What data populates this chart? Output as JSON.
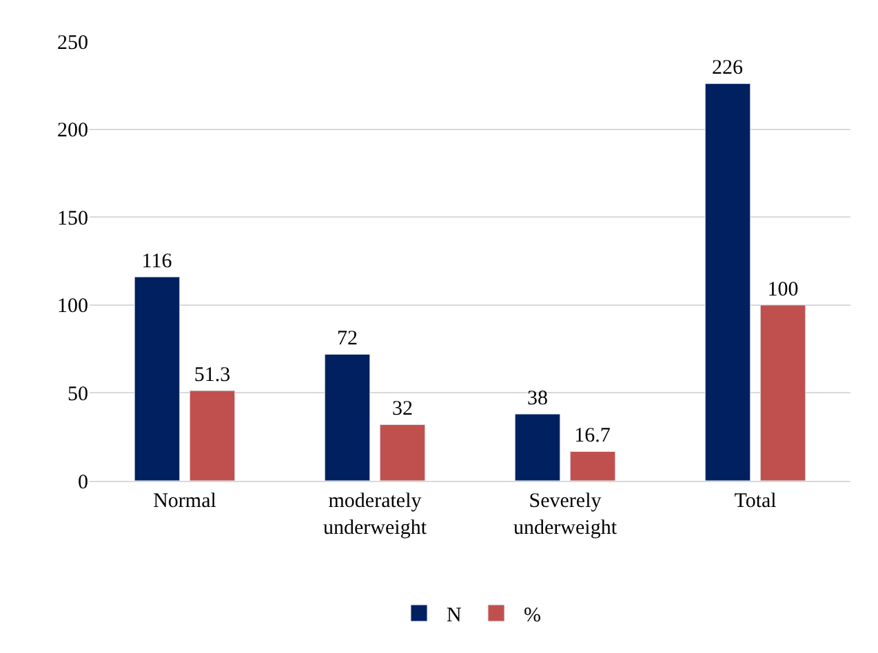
{
  "chart_data": {
    "type": "bar",
    "categories": [
      "Normal",
      "moderately underweight",
      "Severely underweight",
      "Total"
    ],
    "series": [
      {
        "name": "N",
        "color": "#002060",
        "values": [
          116,
          72,
          38,
          226
        ]
      },
      {
        "name": "%",
        "color": "#c0504d",
        "values": [
          51.3,
          32,
          16.7,
          100
        ]
      }
    ],
    "ylim": [
      0,
      250
    ],
    "yticks": [
      0,
      50,
      100,
      150,
      200,
      250
    ],
    "grid": "y",
    "legend": "bottom",
    "data_labels": true
  }
}
